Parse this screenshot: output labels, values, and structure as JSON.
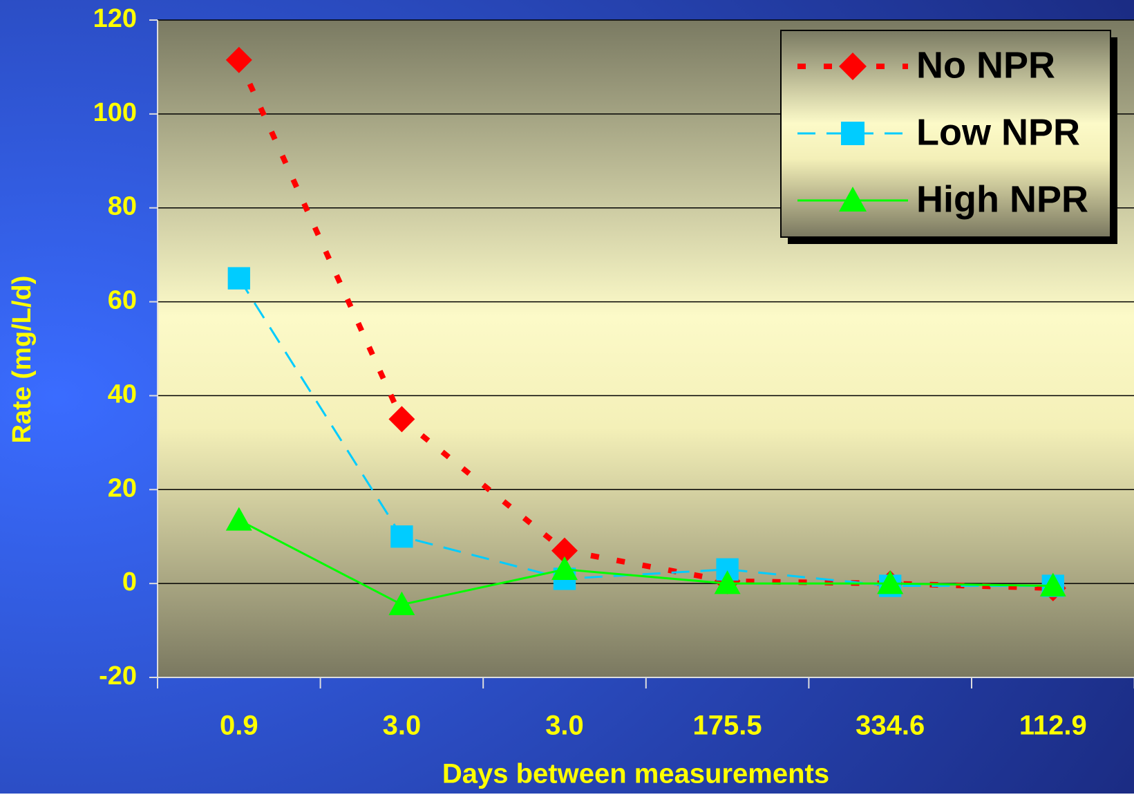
{
  "chart_data": {
    "type": "line",
    "x_label": "Days between measurements",
    "y_label": "Rate (mg/L/d)",
    "categories": [
      "0.9",
      "3.0",
      "3.0",
      "175.5",
      "334.6",
      "112.9"
    ],
    "series": [
      {
        "name": "No NPR",
        "color": "#ff0000",
        "marker": "diamond",
        "values": [
          111.5,
          35,
          7,
          0.5,
          0,
          -1
        ]
      },
      {
        "name": "Low NPR",
        "color": "#00ccff",
        "marker": "square",
        "values": [
          65,
          10,
          1,
          3,
          -0.5,
          -0.5
        ]
      },
      {
        "name": "High NPR",
        "color": "#00ff00",
        "marker": "triangle",
        "values": [
          13.5,
          -4.5,
          3,
          0,
          0,
          -0.5
        ]
      }
    ],
    "ylim": [
      -20,
      120
    ],
    "yticks": [
      -20,
      0,
      20,
      40,
      60,
      80,
      100,
      120
    ],
    "grid": true,
    "legend": "upper right"
  }
}
